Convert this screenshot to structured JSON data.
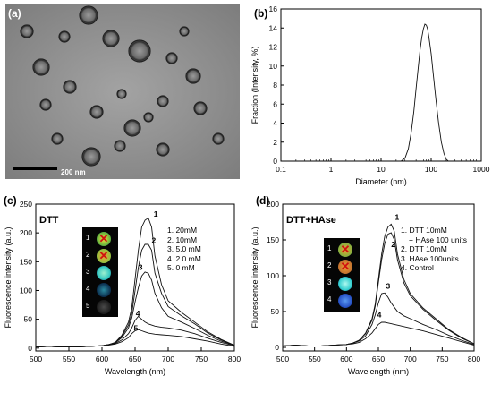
{
  "panels": {
    "a": {
      "letter": "(a)",
      "scale_bar": "200 nm"
    },
    "b": {
      "letter": "(b)",
      "chart_data": {
        "type": "line",
        "title": "",
        "xlabel": "Diameter (nm)",
        "ylabel": "Fraction (Intensity, %)",
        "xscale": "log",
        "xlim": [
          0.1,
          1000
        ],
        "ylim": [
          0,
          16
        ],
        "xticks": [
          "0.1",
          "1",
          "10",
          "100",
          "1000"
        ],
        "yticks": [
          "0",
          "2",
          "4",
          "6",
          "8",
          "10",
          "12",
          "14",
          "16"
        ],
        "grid": false,
        "series": [
          {
            "x": [
              25,
              30,
              35,
              40,
              45,
              50,
              55,
              60,
              65,
              70,
              75,
              80,
              85,
              90,
              100,
              110,
              125,
              140,
              160,
              180,
              200,
              220
            ],
            "values": [
              0,
              0.3,
              1.3,
              3.0,
              5.2,
              7.6,
              9.8,
              11.7,
              13.0,
              13.9,
              14.4,
              14.3,
              13.9,
              13.1,
              11.3,
              9.2,
              6.4,
              4.1,
              2.0,
              0.8,
              0.2,
              0
            ]
          }
        ]
      }
    },
    "c": {
      "letter": "(c)",
      "label": "DTT",
      "legend": [
        "1. 20mM",
        "2. 10mM",
        "3. 5.0 mM",
        "4. 2.0 mM",
        "5. 0 mM"
      ],
      "inset_numbers": [
        "1",
        "2",
        "3",
        "4",
        "5"
      ],
      "chart_data": {
        "type": "line",
        "title": "",
        "xlabel": "Wavelength (nm)",
        "ylabel": "Fluorescence intensity (a.u.)",
        "xlim": [
          500,
          800
        ],
        "ylim": [
          -5,
          250
        ],
        "xticks": [
          "500",
          "550",
          "600",
          "650",
          "700",
          "750",
          "800"
        ],
        "yticks": [
          "0",
          "50",
          "100",
          "150",
          "200",
          "250"
        ],
        "x": [
          500,
          520,
          540,
          560,
          580,
          600,
          610,
          620,
          630,
          640,
          645,
          650,
          655,
          660,
          665,
          670,
          675,
          680,
          690,
          700,
          720,
          740,
          760,
          780,
          800
        ],
        "series": [
          {
            "name": "1",
            "values": [
              2,
              3,
              2,
              2,
              3,
              4,
              6,
              10,
              22,
              45,
              70,
              120,
              170,
              210,
              222,
              226,
              210,
              160,
              110,
              82,
              62,
              45,
              28,
              15,
              5
            ]
          },
          {
            "name": "2",
            "values": [
              2,
              3,
              2,
              2,
              3,
              4,
              6,
              9,
              20,
              40,
              60,
              100,
              140,
              170,
              180,
              180,
              170,
              130,
              95,
              72,
              56,
              42,
              26,
              14,
              5
            ]
          },
          {
            "name": "3",
            "values": [
              2,
              3,
              2,
              2,
              3,
              4,
              6,
              9,
              18,
              35,
              52,
              80,
              105,
              125,
              132,
              130,
              118,
              95,
              70,
              55,
              45,
              34,
              22,
              12,
              5
            ]
          },
          {
            "name": "4",
            "values": [
              2,
              3,
              2,
              2,
              3,
              4,
              6,
              8,
              14,
              25,
              35,
              48,
              55,
              50,
              45,
              42,
              40,
              38,
              36,
              35,
              31,
              25,
              17,
              10,
              4
            ]
          },
          {
            "name": "5",
            "values": [
              2,
              3,
              2,
              2,
              3,
              4,
              5,
              7,
              11,
              18,
              25,
              30,
              32,
              30,
              28,
              26,
              25,
              24,
              23,
              22,
              20,
              16,
              12,
              7,
              3
            ]
          }
        ]
      }
    },
    "d": {
      "letter": "(d)",
      "label": "DTT+HAse",
      "legend": [
        "1. DTT 10mM",
        "+ HAse 100 units",
        "2. DTT 10mM",
        "3. HAse 100units",
        "4. Control"
      ],
      "inset_numbers": [
        "1",
        "2",
        "3",
        "4"
      ],
      "chart_data": {
        "type": "line",
        "title": "",
        "xlabel": "Wavelength (nm)",
        "ylabel": "Fluorescence intensity (a.u.)",
        "xlim": [
          500,
          800
        ],
        "ylim": [
          -5,
          200
        ],
        "xticks": [
          "500",
          "550",
          "600",
          "650",
          "700",
          "750",
          "800"
        ],
        "yticks": [
          "0",
          "50",
          "100",
          "150",
          "200"
        ],
        "x": [
          500,
          520,
          540,
          560,
          580,
          600,
          610,
          620,
          630,
          640,
          645,
          650,
          655,
          660,
          665,
          670,
          675,
          680,
          690,
          700,
          720,
          740,
          760,
          780,
          800
        ],
        "series": [
          {
            "name": "1",
            "values": [
              2,
              3,
              2,
              2,
              3,
              4,
              6,
              10,
              20,
              40,
              60,
              95,
              130,
              155,
              168,
              172,
              162,
              130,
              95,
              75,
              55,
              40,
              25,
              14,
              5
            ]
          },
          {
            "name": "2",
            "values": [
              2,
              3,
              2,
              2,
              3,
              4,
              6,
              10,
              19,
              38,
              57,
              90,
              122,
              145,
              158,
              160,
              150,
              122,
              90,
              72,
              53,
              38,
              24,
              13,
              5
            ]
          },
          {
            "name": "3",
            "values": [
              2,
              3,
              2,
              2,
              3,
              4,
              6,
              9,
              16,
              32,
              45,
              62,
              75,
              76,
              70,
              62,
              56,
              50,
              44,
              40,
              32,
              25,
              17,
              10,
              4
            ]
          },
          {
            "name": "4",
            "values": [
              2,
              3,
              2,
              2,
              3,
              4,
              5,
              7,
              12,
              20,
              26,
              32,
              35,
              35,
              34,
              33,
              32,
              31,
              29,
              27,
              23,
              18,
              13,
              8,
              3
            ]
          }
        ]
      }
    }
  },
  "colors": {
    "tem_background": "#8e8e8e",
    "inset_background": "#050505",
    "spot_1": "#f3e23a",
    "spot_2": "#f0a030",
    "spot_3": "#36c9c0",
    "spot_4": "#2a56c8",
    "spot_5": "#3a3a3a",
    "cross": "#d01010"
  }
}
